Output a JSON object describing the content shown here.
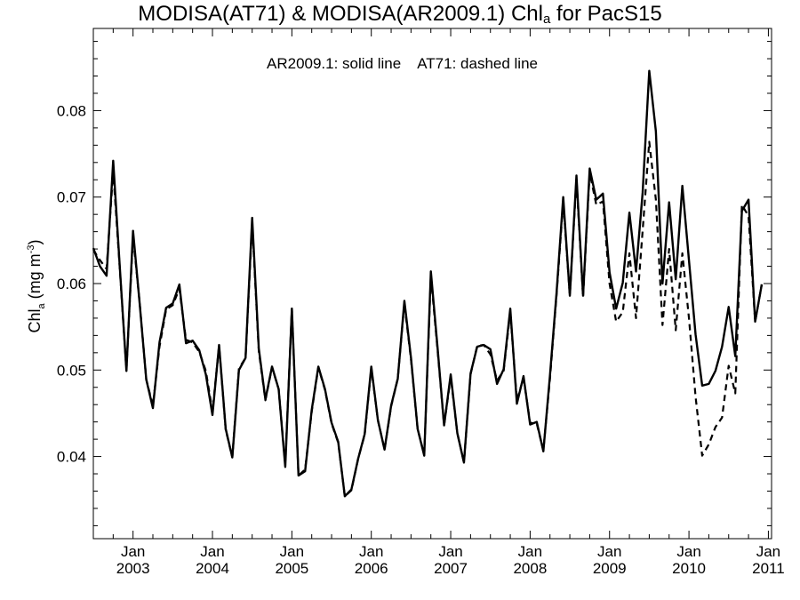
{
  "chart_data": {
    "type": "line",
    "title": {
      "prefix": "MODISA(AT71) & MODISA(AR2009.1)  Chl",
      "subscript": "a",
      "suffix": " for PacS15"
    },
    "ylabel": {
      "prefix": "Chl",
      "subscript": "a",
      "middle": " (mg m",
      "superscript": "-3",
      "suffix": ")"
    },
    "legend_note": [
      "AR2009.1: solid line",
      "AT71: dashed line"
    ],
    "xlim": [
      2002.5,
      2011.04
    ],
    "ylim": [
      0.0305,
      0.0895
    ],
    "x_ticks": [
      {
        "value": 2003.0,
        "month": "Jan",
        "year": "2003"
      },
      {
        "value": 2004.0,
        "month": "Jan",
        "year": "2004"
      },
      {
        "value": 2005.0,
        "month": "Jan",
        "year": "2005"
      },
      {
        "value": 2006.0,
        "month": "Jan",
        "year": "2006"
      },
      {
        "value": 2007.0,
        "month": "Jan",
        "year": "2007"
      },
      {
        "value": 2008.0,
        "month": "Jan",
        "year": "2008"
      },
      {
        "value": 2009.0,
        "month": "Jan",
        "year": "2009"
      },
      {
        "value": 2010.0,
        "month": "Jan",
        "year": "2010"
      },
      {
        "value": 2011.0,
        "month": "Jan",
        "year": "2011"
      }
    ],
    "y_ticks": [
      {
        "value": 0.04,
        "label": "0.04"
      },
      {
        "value": 0.05,
        "label": "0.05"
      },
      {
        "value": 0.06,
        "label": "0.06"
      },
      {
        "value": 0.07,
        "label": "0.07"
      },
      {
        "value": 0.08,
        "label": "0.08"
      }
    ],
    "x": [
      "2002-07",
      "2002-08",
      "2002-09",
      "2002-10",
      "2002-11",
      "2002-12",
      "2003-01",
      "2003-02",
      "2003-03",
      "2003-04",
      "2003-05",
      "2003-06",
      "2003-07",
      "2003-08",
      "2003-09",
      "2003-10",
      "2003-11",
      "2003-12",
      "2004-01",
      "2004-02",
      "2004-03",
      "2004-04",
      "2004-05",
      "2004-06",
      "2004-07",
      "2004-08",
      "2004-09",
      "2004-10",
      "2004-11",
      "2004-12",
      "2005-01",
      "2005-02",
      "2005-03",
      "2005-04",
      "2005-05",
      "2005-06",
      "2005-07",
      "2005-08",
      "2005-09",
      "2005-10",
      "2005-11",
      "2005-12",
      "2006-01",
      "2006-02",
      "2006-03",
      "2006-04",
      "2006-05",
      "2006-06",
      "2006-07",
      "2006-08",
      "2006-09",
      "2006-10",
      "2006-11",
      "2006-12",
      "2007-01",
      "2007-02",
      "2007-03",
      "2007-04",
      "2007-05",
      "2007-06",
      "2007-07",
      "2007-08",
      "2007-09",
      "2007-10",
      "2007-11",
      "2007-12",
      "2008-01",
      "2008-02",
      "2008-03",
      "2008-04",
      "2008-05",
      "2008-06",
      "2008-07",
      "2008-08",
      "2008-09",
      "2008-10",
      "2008-11",
      "2008-12",
      "2009-01",
      "2009-02",
      "2009-03",
      "2009-04",
      "2009-05",
      "2009-06",
      "2009-07",
      "2009-08",
      "2009-09",
      "2009-10",
      "2009-11",
      "2009-12",
      "2010-01",
      "2010-02",
      "2010-03",
      "2010-04",
      "2010-05",
      "2010-06",
      "2010-07",
      "2010-08",
      "2010-09",
      "2010-10",
      "2010-11",
      "2010-12"
    ],
    "series": [
      {
        "name": "AR2009.1",
        "style": "solid",
        "color": "#000000",
        "values": [
          0.0641,
          0.062,
          0.0609,
          0.0742,
          0.0619,
          0.0499,
          0.0661,
          0.0577,
          0.0489,
          0.0456,
          0.0532,
          0.0572,
          0.0577,
          0.0599,
          0.0531,
          0.0534,
          0.0523,
          0.0495,
          0.0448,
          0.0529,
          0.0432,
          0.0399,
          0.05,
          0.0514,
          0.0676,
          0.0525,
          0.0466,
          0.0504,
          0.0478,
          0.0388,
          0.0571,
          0.0378,
          0.0383,
          0.0454,
          0.0504,
          0.0478,
          0.0439,
          0.0417,
          0.0354,
          0.0362,
          0.0397,
          0.0426,
          0.0504,
          0.0442,
          0.0408,
          0.0459,
          0.049,
          0.058,
          0.0514,
          0.0432,
          0.0401,
          0.0614,
          0.0527,
          0.0436,
          0.0495,
          0.0427,
          0.0393,
          0.0496,
          0.0527,
          0.0529,
          0.0524,
          0.0484,
          0.0501,
          0.0571,
          0.0461,
          0.0493,
          0.0437,
          0.044,
          0.0406,
          0.0494,
          0.059,
          0.07,
          0.0586,
          0.0725,
          0.0586,
          0.0733,
          0.0697,
          0.0704,
          0.0613,
          0.0571,
          0.0601,
          0.0682,
          0.0614,
          0.0705,
          0.0846,
          0.0776,
          0.06,
          0.0694,
          0.0605,
          0.0713,
          0.0627,
          0.0541,
          0.0482,
          0.0484,
          0.0499,
          0.0527,
          0.0573,
          0.0516,
          0.0684,
          0.0697,
          0.0556,
          0.0599
        ]
      },
      {
        "name": "AT71",
        "style": "dashed",
        "color": "#000000",
        "values": [
          0.0639,
          0.0627,
          0.0617,
          0.073,
          0.0617,
          0.05,
          0.0655,
          0.0578,
          0.0489,
          0.0459,
          0.0527,
          0.057,
          0.0575,
          0.0594,
          0.0535,
          0.0532,
          0.0521,
          0.0499,
          0.0452,
          0.0528,
          0.0431,
          0.0399,
          0.0502,
          0.0514,
          0.067,
          0.0522,
          0.0465,
          0.0503,
          0.0478,
          0.039,
          0.0571,
          0.0378,
          0.0385,
          0.0452,
          0.0503,
          0.0477,
          0.0438,
          0.0416,
          0.0354,
          0.0361,
          0.0397,
          0.0425,
          0.0502,
          0.0442,
          0.0408,
          0.0458,
          0.049,
          0.0577,
          0.0512,
          0.0432,
          0.0402,
          0.0609,
          0.0524,
          0.0436,
          0.0492,
          0.0427,
          0.0393,
          0.0495,
          0.0528,
          0.0529,
          0.0518,
          0.0488,
          0.0499,
          0.0567,
          0.0465,
          0.0491,
          0.0439,
          0.0438,
          0.0407,
          0.049,
          0.0587,
          0.0695,
          0.0586,
          0.0721,
          0.0584,
          0.0728,
          0.0691,
          0.0695,
          0.06,
          0.0556,
          0.0567,
          0.0635,
          0.056,
          0.0661,
          0.0764,
          0.0697,
          0.0552,
          0.064,
          0.0546,
          0.0635,
          0.056,
          0.0469,
          0.0401,
          0.0414,
          0.0434,
          0.0445,
          0.0505,
          0.0473,
          0.0691,
          0.0678,
          0.0556,
          0.0599
        ]
      }
    ]
  }
}
